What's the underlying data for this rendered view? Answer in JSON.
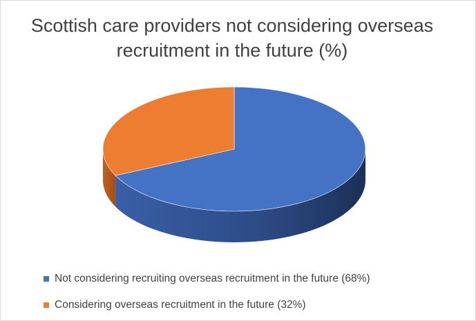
{
  "chart_data": {
    "type": "pie3d",
    "title": "Scottish care providers not considering overseas recruitment in the future (%)",
    "series": [
      {
        "name": "Not considering recruiting overseas recruitment in the future (68%)",
        "color": "#4472c4",
        "value": 68
      },
      {
        "name": "Considering overseas recruitment in the future (32%)",
        "color": "#ed7d31",
        "value": 32
      }
    ],
    "legend": "bottom"
  }
}
